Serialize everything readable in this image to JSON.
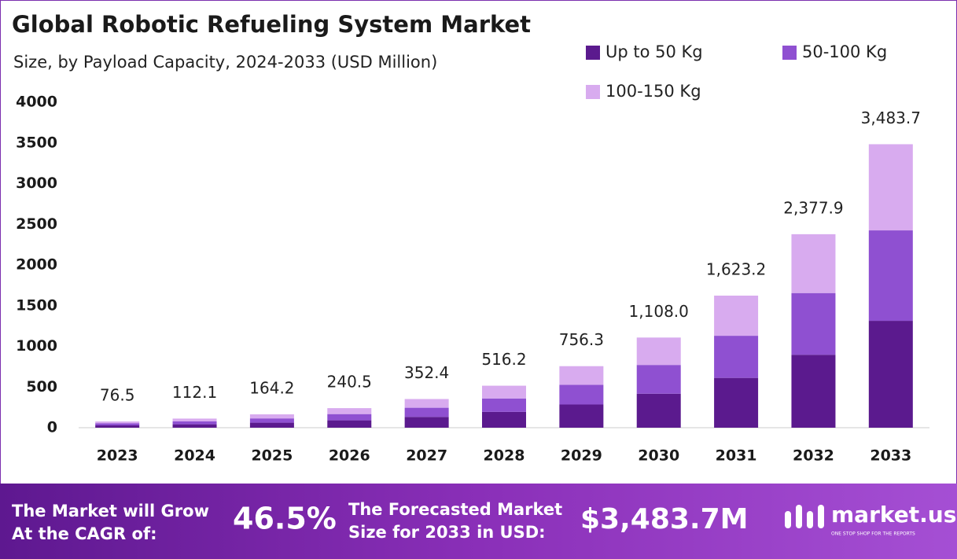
{
  "chart_data": {
    "type": "stacked_bar",
    "title": "Global Robotic Refueling System Market",
    "subtitle": "Size, by Payload Capacity, 2024-2033 (USD Million)",
    "categories": [
      "2023",
      "2024",
      "2025",
      "2026",
      "2027",
      "2028",
      "2029",
      "2030",
      "2031",
      "2032",
      "2033"
    ],
    "series": [
      {
        "name": "Up to 50 Kg",
        "color": "#5b1a8e",
        "values": [
          28.8,
          42.3,
          61.9,
          90.7,
          132.9,
          194.6,
          285.1,
          417.7,
          611.9,
          896.5,
          1313.4
        ]
      },
      {
        "name": "50-100 Kg",
        "color": "#8f50d1",
        "values": [
          24.4,
          35.8,
          52.4,
          76.7,
          112.4,
          164.7,
          241.3,
          353.5,
          517.8,
          758.5,
          1111.3
        ]
      },
      {
        "name": "100-150 Kg",
        "color": "#d8abef",
        "values": [
          23.3,
          34.0,
          49.9,
          73.1,
          107.1,
          156.9,
          229.9,
          336.8,
          493.5,
          722.9,
          1059.0
        ]
      }
    ],
    "totals": [
      76.5,
      112.1,
      164.2,
      240.5,
      352.4,
      516.2,
      756.3,
      1108.0,
      1623.2,
      2377.9,
      3483.7
    ],
    "total_labels": [
      "76.5",
      "112.1",
      "164.2",
      "240.5",
      "352.4",
      "516.2",
      "756.3",
      "1,108.0",
      "1,623.2",
      "2,377.9",
      "3,483.7"
    ],
    "ylim": [
      0,
      4000
    ],
    "yticks": [
      0,
      500,
      1000,
      1500,
      2000,
      2500,
      3000,
      3500,
      4000
    ],
    "grid": false
  },
  "footer": {
    "cagr_text": [
      "The Market will Grow",
      "At the CAGR of:"
    ],
    "cagr_value": "46.5%",
    "forecast_text": [
      "The Forecasted Market",
      "Size for 2033 in USD:"
    ],
    "forecast_value": "$3,483.7M",
    "brand": "market.us",
    "tagline": "ONE STOP SHOP FOR THE REPORTS"
  }
}
